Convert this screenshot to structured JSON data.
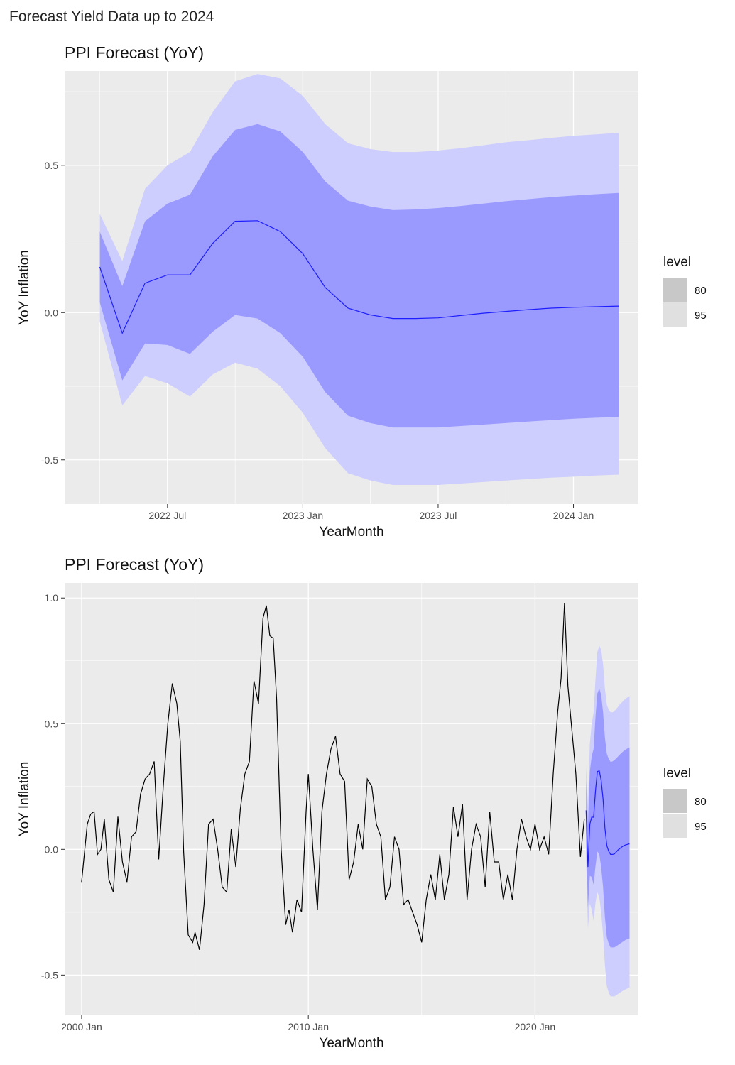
{
  "page_title": "Forecast Yield Data up to 2024",
  "colors": {
    "panel_bg": "#ebebeb",
    "grid": "#ffffff",
    "band80": "#9a9afe",
    "band95": "#cdcdfe",
    "forecast_line": "#1d1dff",
    "history_line": "#000000",
    "legend80": "#c8c8c8",
    "legend95": "#e0e0e0"
  },
  "chart_data": [
    {
      "type": "area",
      "title": "PPI Forecast (YoY)",
      "xlabel": "YearMonth",
      "ylabel": "YoY Inflation",
      "xlim": [
        2022.12,
        2024.24
      ],
      "ylim": [
        -0.65,
        0.82
      ],
      "x_ticks": [
        {
          "value": 2022.5,
          "label": "2022 Jul"
        },
        {
          "value": 2023.0,
          "label": "2023 Jan"
        },
        {
          "value": 2023.5,
          "label": "2023 Jul"
        },
        {
          "value": 2024.0,
          "label": "2024 Jan"
        }
      ],
      "y_ticks": [
        {
          "value": -0.5,
          "label": "-0.5"
        },
        {
          "value": 0.0,
          "label": "0.0"
        },
        {
          "value": 0.5,
          "label": "0.5"
        }
      ],
      "grid": true,
      "legend": {
        "title": "level",
        "position": "right",
        "entries": [
          "80",
          "95"
        ]
      },
      "forecast": {
        "x": [
          2022.25,
          2022.333,
          2022.417,
          2022.5,
          2022.583,
          2022.667,
          2022.75,
          2022.833,
          2022.917,
          2023.0,
          2023.083,
          2023.167,
          2023.25,
          2023.333,
          2023.417,
          2023.5,
          2023.583,
          2023.667,
          2023.75,
          2023.833,
          2023.917,
          2024.0,
          2024.083,
          2024.167
        ],
        "mean": [
          0.155,
          -0.07,
          0.1,
          0.128,
          0.128,
          0.235,
          0.31,
          0.312,
          0.275,
          0.2,
          0.085,
          0.015,
          -0.008,
          -0.02,
          -0.02,
          -0.018,
          -0.01,
          -0.002,
          0.004,
          0.01,
          0.015,
          0.018,
          0.02,
          0.022
        ],
        "lo80": [
          0.035,
          -0.23,
          -0.105,
          -0.11,
          -0.14,
          -0.065,
          -0.008,
          -0.02,
          -0.07,
          -0.15,
          -0.27,
          -0.35,
          -0.375,
          -0.39,
          -0.39,
          -0.39,
          -0.385,
          -0.38,
          -0.375,
          -0.37,
          -0.365,
          -0.36,
          -0.357,
          -0.354
        ],
        "hi80": [
          0.275,
          0.09,
          0.31,
          0.37,
          0.4,
          0.53,
          0.62,
          0.64,
          0.615,
          0.545,
          0.445,
          0.38,
          0.36,
          0.348,
          0.35,
          0.355,
          0.362,
          0.37,
          0.378,
          0.385,
          0.392,
          0.397,
          0.402,
          0.406
        ],
        "lo95": [
          -0.03,
          -0.315,
          -0.215,
          -0.24,
          -0.285,
          -0.21,
          -0.17,
          -0.19,
          -0.25,
          -0.34,
          -0.46,
          -0.545,
          -0.57,
          -0.585,
          -0.585,
          -0.585,
          -0.58,
          -0.575,
          -0.57,
          -0.565,
          -0.56,
          -0.557,
          -0.553,
          -0.55
        ],
        "hi95": [
          0.335,
          0.175,
          0.42,
          0.5,
          0.545,
          0.68,
          0.785,
          0.81,
          0.795,
          0.735,
          0.64,
          0.575,
          0.555,
          0.545,
          0.545,
          0.55,
          0.558,
          0.568,
          0.578,
          0.585,
          0.593,
          0.6,
          0.605,
          0.61
        ]
      }
    },
    {
      "type": "line",
      "title": "PPI Forecast (YoY)",
      "xlabel": "YearMonth",
      "ylabel": "YoY Inflation",
      "xlim": [
        1999.25,
        2024.56
      ],
      "ylim": [
        -0.66,
        1.06
      ],
      "x_ticks": [
        {
          "value": 2000.0,
          "label": "2000 Jan"
        },
        {
          "value": 2010.0,
          "label": "2010 Jan"
        },
        {
          "value": 2020.0,
          "label": "2020 Jan"
        }
      ],
      "y_ticks": [
        {
          "value": -0.5,
          "label": "-0.5"
        },
        {
          "value": 0.0,
          "label": "0.0"
        },
        {
          "value": 0.5,
          "label": "0.5"
        },
        {
          "value": 1.0,
          "label": "1.0"
        }
      ],
      "grid": true,
      "legend": {
        "title": "level",
        "position": "right",
        "entries": [
          "80",
          "95"
        ]
      },
      "history": {
        "x": [
          2000.0,
          2000.25,
          2000.4,
          2000.55,
          2000.7,
          2000.85,
          2001.0,
          2001.2,
          2001.4,
          2001.6,
          2001.8,
          2002.0,
          2002.2,
          2002.4,
          2002.6,
          2002.8,
          2003.0,
          2003.2,
          2003.4,
          2003.6,
          2003.8,
          2004.0,
          2004.2,
          2004.35,
          2004.5,
          2004.7,
          2004.9,
          2005.0,
          2005.2,
          2005.4,
          2005.6,
          2005.8,
          2006.0,
          2006.2,
          2006.4,
          2006.6,
          2006.8,
          2007.0,
          2007.2,
          2007.4,
          2007.6,
          2007.8,
          2008.0,
          2008.15,
          2008.3,
          2008.45,
          2008.6,
          2008.8,
          2009.0,
          2009.15,
          2009.3,
          2009.5,
          2009.7,
          2009.9,
          2010.0,
          2010.2,
          2010.4,
          2010.6,
          2010.8,
          2011.0,
          2011.2,
          2011.4,
          2011.6,
          2011.8,
          2012.0,
          2012.2,
          2012.4,
          2012.6,
          2012.8,
          2013.0,
          2013.2,
          2013.4,
          2013.6,
          2013.8,
          2014.0,
          2014.2,
          2014.4,
          2014.6,
          2014.8,
          2015.0,
          2015.2,
          2015.4,
          2015.6,
          2015.8,
          2016.0,
          2016.2,
          2016.4,
          2016.6,
          2016.8,
          2017.0,
          2017.2,
          2017.4,
          2017.6,
          2017.8,
          2018.0,
          2018.2,
          2018.4,
          2018.6,
          2018.8,
          2019.0,
          2019.2,
          2019.4,
          2019.6,
          2019.8,
          2020.0,
          2020.2,
          2020.4,
          2020.6,
          2020.8,
          2021.0,
          2021.15,
          2021.3,
          2021.45,
          2021.6,
          2021.8,
          2022.0,
          2022.17
        ],
        "values": [
          -0.13,
          0.1,
          0.14,
          0.15,
          -0.02,
          0.0,
          0.12,
          -0.12,
          -0.17,
          0.13,
          -0.05,
          -0.13,
          0.05,
          0.07,
          0.22,
          0.28,
          0.3,
          0.35,
          -0.04,
          0.25,
          0.5,
          0.66,
          0.58,
          0.43,
          -0.01,
          -0.34,
          -0.37,
          -0.33,
          -0.4,
          -0.22,
          0.1,
          0.12,
          0.0,
          -0.15,
          -0.17,
          0.08,
          -0.07,
          0.16,
          0.3,
          0.35,
          0.67,
          0.58,
          0.92,
          0.97,
          0.85,
          0.84,
          0.6,
          0.0,
          -0.3,
          -0.24,
          -0.33,
          -0.2,
          -0.25,
          0.15,
          0.3,
          0.0,
          -0.24,
          0.15,
          0.3,
          0.4,
          0.45,
          0.3,
          0.27,
          -0.12,
          -0.05,
          0.1,
          0.0,
          0.28,
          0.25,
          0.1,
          0.05,
          -0.2,
          -0.15,
          0.05,
          0.0,
          -0.22,
          -0.2,
          -0.25,
          -0.3,
          -0.37,
          -0.2,
          -0.1,
          -0.2,
          -0.02,
          -0.2,
          -0.1,
          0.17,
          0.05,
          0.18,
          -0.2,
          0.0,
          0.1,
          0.05,
          -0.15,
          0.15,
          -0.05,
          -0.05,
          -0.2,
          -0.1,
          -0.2,
          0.0,
          0.12,
          0.05,
          0.0,
          0.1,
          0.0,
          0.05,
          -0.02,
          0.3,
          0.55,
          0.68,
          0.98,
          0.65,
          0.5,
          0.3,
          -0.03,
          0.12
        ]
      },
      "forecast": {
        "x": [
          2022.25,
          2022.333,
          2022.417,
          2022.5,
          2022.583,
          2022.667,
          2022.75,
          2022.833,
          2022.917,
          2023.0,
          2023.083,
          2023.167,
          2023.25,
          2023.333,
          2023.417,
          2023.5,
          2023.583,
          2023.667,
          2023.75,
          2023.833,
          2023.917,
          2024.0,
          2024.083,
          2024.167
        ],
        "mean": [
          0.155,
          -0.07,
          0.1,
          0.128,
          0.128,
          0.235,
          0.31,
          0.312,
          0.275,
          0.2,
          0.085,
          0.015,
          -0.008,
          -0.02,
          -0.02,
          -0.018,
          -0.01,
          -0.002,
          0.004,
          0.01,
          0.015,
          0.018,
          0.02,
          0.022
        ],
        "lo80": [
          0.035,
          -0.23,
          -0.105,
          -0.11,
          -0.14,
          -0.065,
          -0.008,
          -0.02,
          -0.07,
          -0.15,
          -0.27,
          -0.35,
          -0.375,
          -0.39,
          -0.39,
          -0.39,
          -0.385,
          -0.38,
          -0.375,
          -0.37,
          -0.365,
          -0.36,
          -0.357,
          -0.354
        ],
        "hi80": [
          0.275,
          0.09,
          0.31,
          0.37,
          0.4,
          0.53,
          0.62,
          0.64,
          0.615,
          0.545,
          0.445,
          0.38,
          0.36,
          0.348,
          0.35,
          0.355,
          0.362,
          0.37,
          0.378,
          0.385,
          0.392,
          0.397,
          0.402,
          0.406
        ],
        "lo95": [
          -0.03,
          -0.315,
          -0.215,
          -0.24,
          -0.285,
          -0.21,
          -0.17,
          -0.19,
          -0.25,
          -0.34,
          -0.46,
          -0.545,
          -0.57,
          -0.585,
          -0.585,
          -0.585,
          -0.58,
          -0.575,
          -0.57,
          -0.565,
          -0.56,
          -0.557,
          -0.553,
          -0.55
        ],
        "hi95": [
          0.335,
          0.175,
          0.42,
          0.5,
          0.545,
          0.68,
          0.785,
          0.81,
          0.795,
          0.735,
          0.64,
          0.575,
          0.555,
          0.545,
          0.545,
          0.55,
          0.558,
          0.568,
          0.578,
          0.585,
          0.593,
          0.6,
          0.605,
          0.61
        ]
      }
    }
  ]
}
